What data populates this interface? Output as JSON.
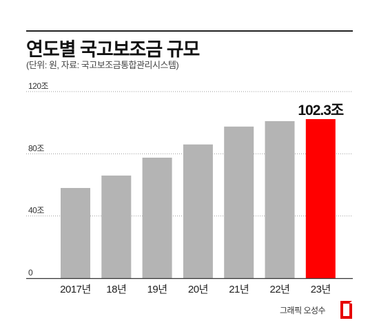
{
  "title": "연도별 국고보조금 규모",
  "subtitle": "(단위: 원, 자료: 국고보조금통합관리시스템)",
  "credit": "그래픽 오성수",
  "colors": {
    "bar": "#b4b4b4",
    "highlight": "#ff0000",
    "grid": "#9a9a9a",
    "axis": "#333333",
    "text": "#222222"
  },
  "chart_data": {
    "type": "bar",
    "categories": [
      "2017년",
      "18년",
      "19년",
      "20년",
      "21년",
      "22년",
      "23년"
    ],
    "values": [
      58.0,
      66.0,
      77.5,
      86.0,
      97.5,
      101.0,
      102.3
    ],
    "highlight_index": 6,
    "highlight_label": "102.3조",
    "yticks": [
      {
        "value": 0,
        "label": "0"
      },
      {
        "value": 40,
        "label": "40조"
      },
      {
        "value": 80,
        "label": "80조"
      },
      {
        "value": 120,
        "label": "120조"
      }
    ],
    "ylim": [
      0,
      120
    ],
    "grid": true,
    "grid_style": "dotted"
  }
}
